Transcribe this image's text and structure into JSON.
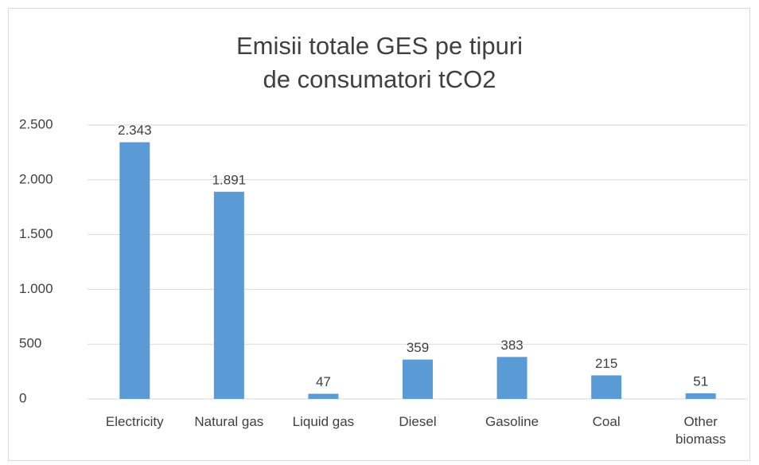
{
  "chart_data": {
    "type": "bar",
    "title": [
      "Emisii totale GES pe tipuri",
      "de consumatori tCO2"
    ],
    "categories": [
      "Electricity",
      "Natural gas",
      "Liquid gas",
      "Diesel",
      "Gasoline",
      "Coal",
      "Other biomass"
    ],
    "values": [
      2343,
      1891,
      47,
      359,
      383,
      215,
      51
    ],
    "value_labels": [
      "2.343",
      "1.891",
      "47",
      "359",
      "383",
      "215",
      "51"
    ],
    "color": "#5b9bd5",
    "ylim": [
      0,
      2500
    ],
    "yticks": [
      0,
      500,
      {
        "value": 1000,
        "label": "1.000"
      },
      {
        "value": 1500,
        "label": "1.500"
      },
      {
        "value": 2000,
        "label": "2.000"
      },
      {
        "value": 2500,
        "label": "2.500"
      }
    ],
    "grid": true
  }
}
